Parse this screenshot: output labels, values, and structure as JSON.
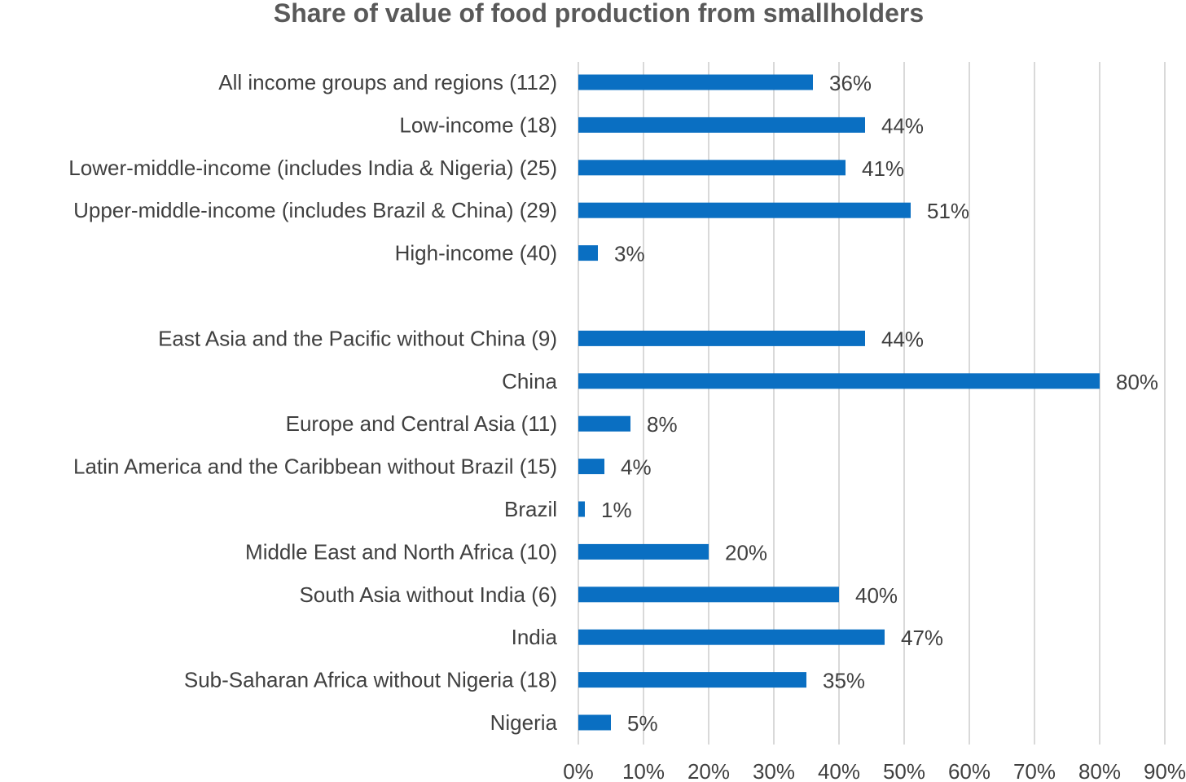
{
  "chart_data": {
    "type": "bar",
    "orientation": "horizontal",
    "title": "Share of value of food production from smallholders",
    "xlabel": "",
    "ylabel": "",
    "xlim": [
      0,
      90
    ],
    "x_tick_values": [
      0,
      10,
      20,
      30,
      40,
      50,
      60,
      70,
      80,
      90
    ],
    "x_tick_labels": [
      "0%",
      "10%",
      "20%",
      "30%",
      "40%",
      "50%",
      "60%",
      "70%",
      "80%",
      "90%"
    ],
    "grid": true,
    "grid_axis": "x",
    "legend": false,
    "value_suffix": "%",
    "colors": {
      "bar": "#0A6FC2",
      "grid": "#D9D9D9",
      "text": "#404040",
      "title": "#595959"
    },
    "groups": [
      {
        "categories": [
          "All income groups  and regions (112)",
          "Low-income (18)",
          "Lower-middle-income (includes India & Nigeria) (25)",
          "Upper-middle-income (includes Brazil & China) (29)",
          "High-income (40)"
        ],
        "values": [
          36,
          44,
          41,
          51,
          3
        ]
      },
      {
        "categories": [
          "East Asia and the Pacific without China (9)",
          "China",
          "Europe and Central Asia (11)",
          "Latin America and the Caribbean without Brazil (15)",
          "Brazil",
          "Middle East and North Africa (10)",
          "South Asia without India (6)",
          "India",
          "Sub-Saharan Africa without Nigeria  (18)",
          "Nigeria"
        ],
        "values": [
          44,
          80,
          8,
          4,
          1,
          20,
          40,
          47,
          35,
          5
        ]
      }
    ]
  }
}
